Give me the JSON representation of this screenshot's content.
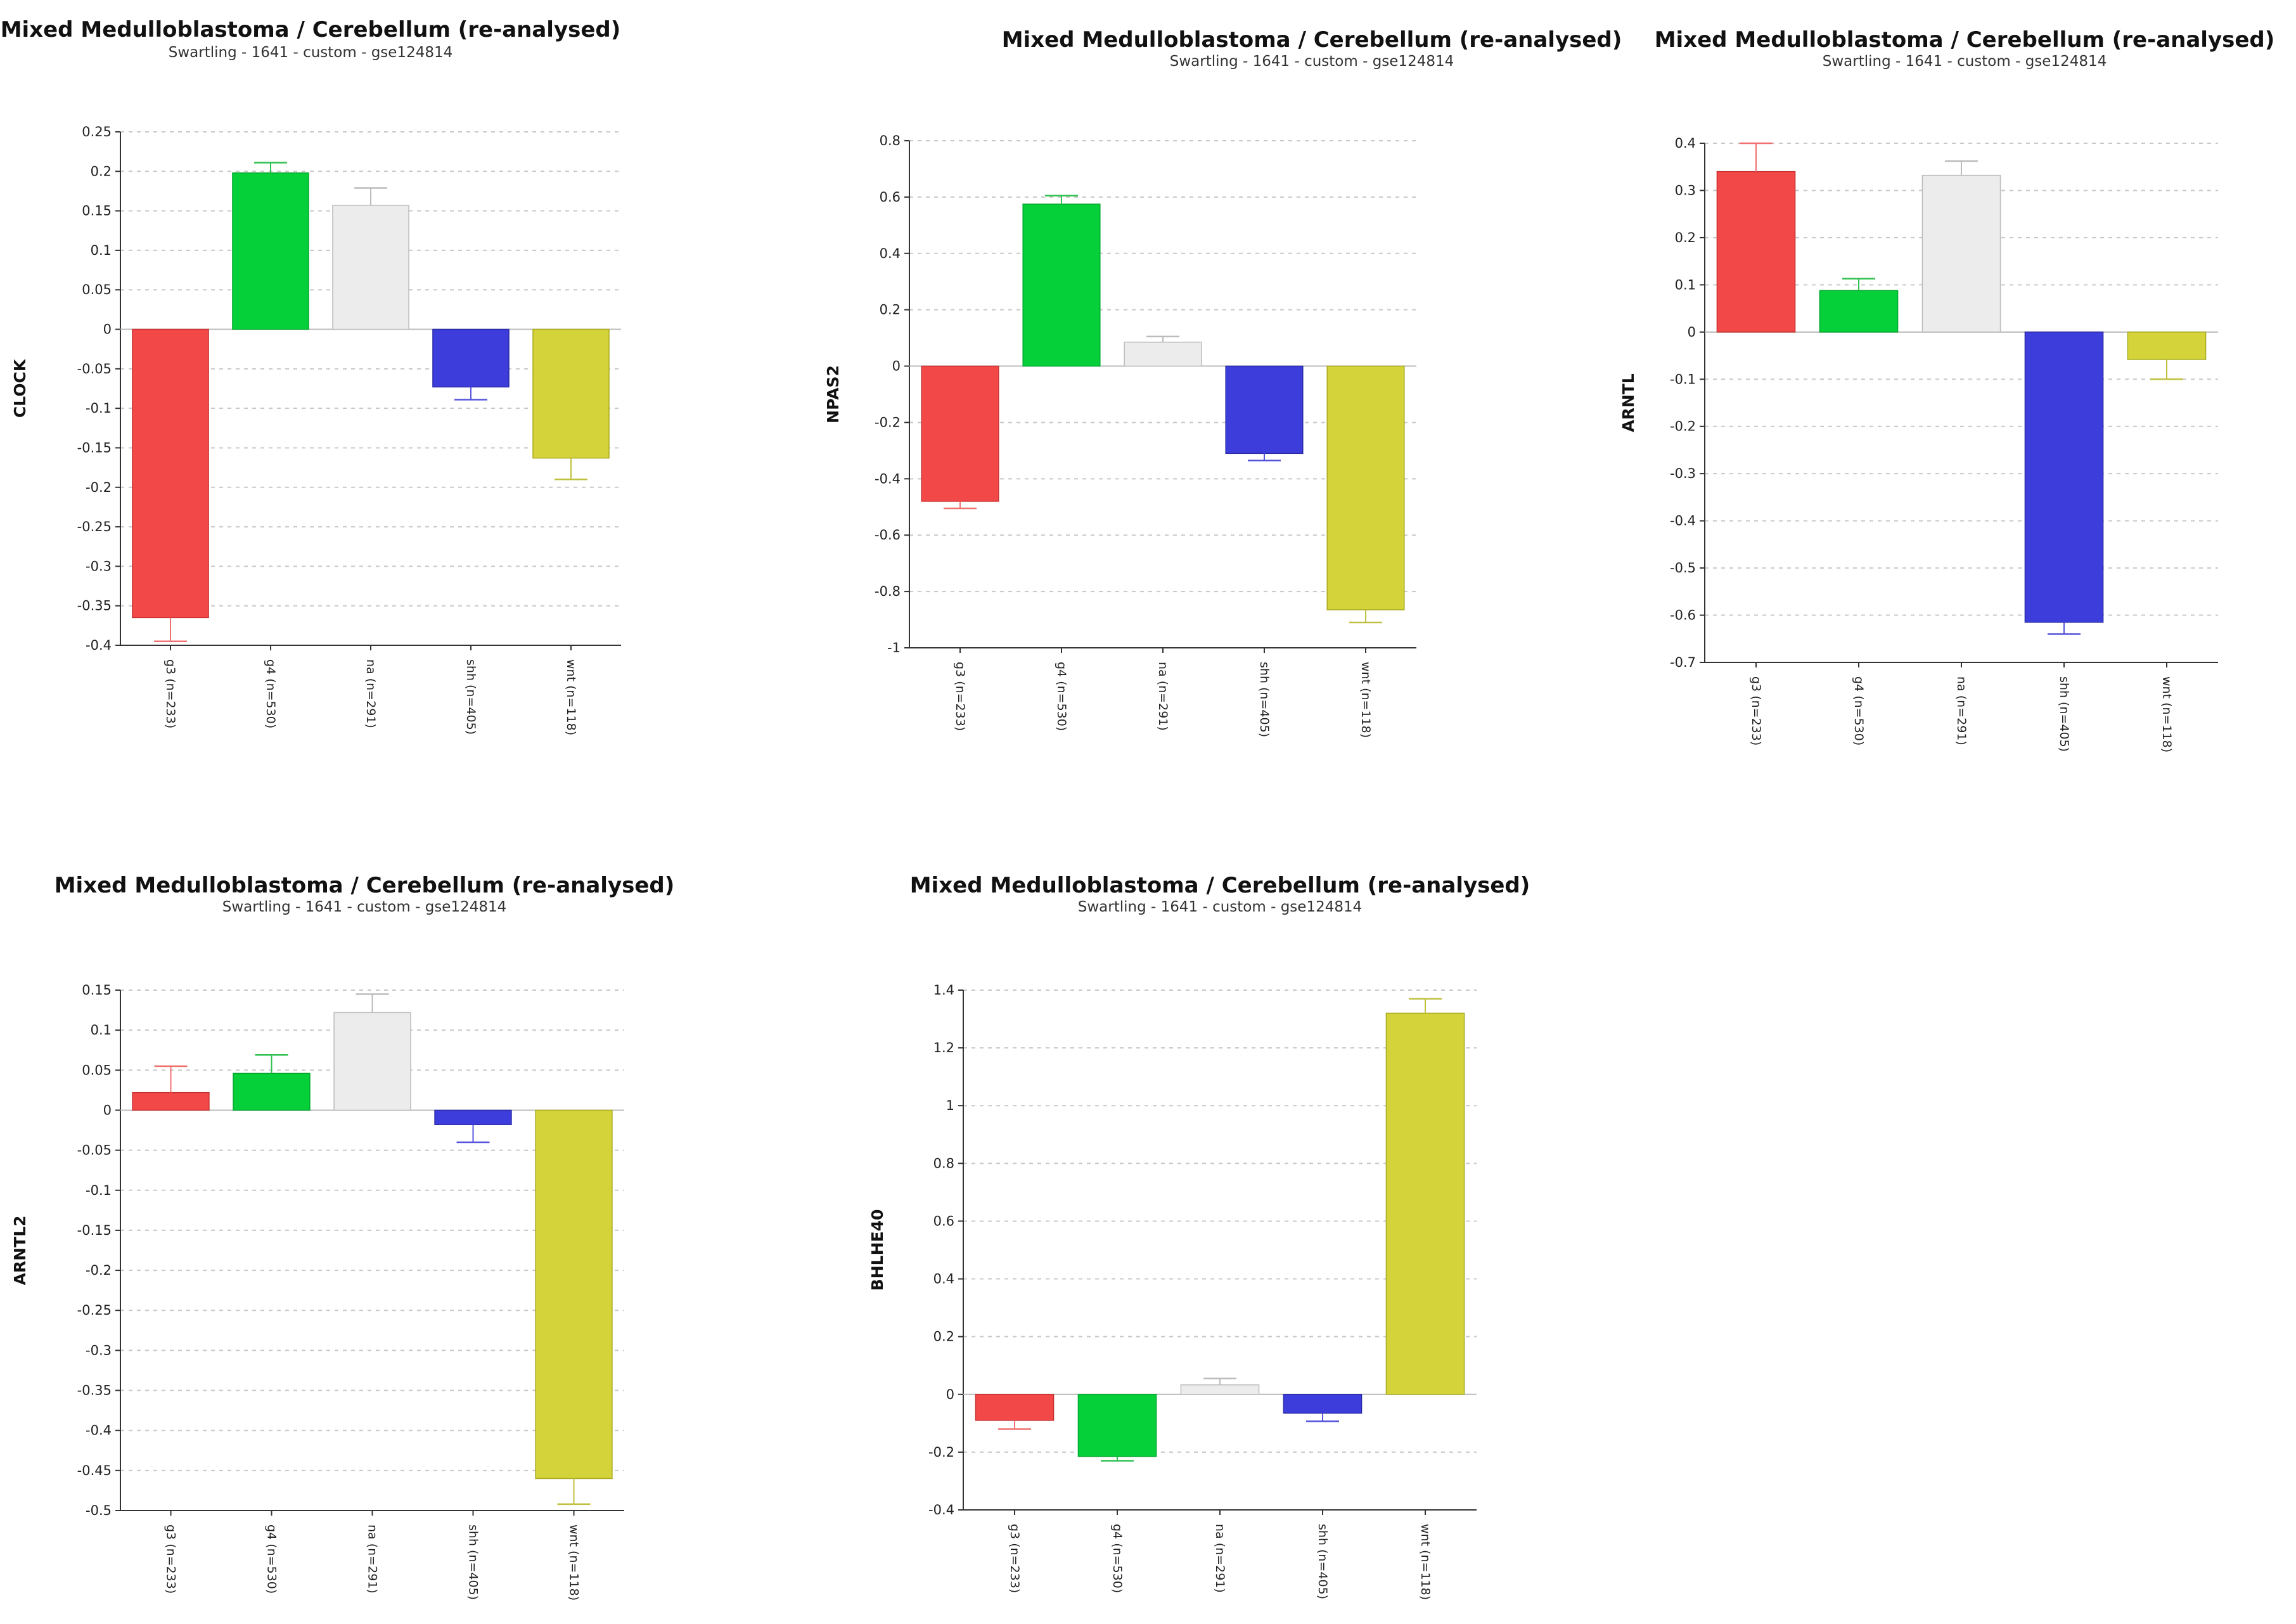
{
  "colors": {
    "g3": "#f24848",
    "g4": "#05d03a",
    "na": "#ececec",
    "shh": "#3d3ddc",
    "wnt": "#d4d43a"
  },
  "chart_data": [
    {
      "type": "bar",
      "title": "Mixed Medulloblastoma / Cerebellum (re-analysed)",
      "subtitle": "Swartling - 1641 - custom - gse124814",
      "ylabel": "CLOCK",
      "xlabel": "",
      "categories": [
        "g3 (n=233)",
        "g4 (n=530)",
        "na (n=291)",
        "shh (n=405)",
        "wnt (n=118)"
      ],
      "values": [
        -0.365,
        0.198,
        0.157,
        -0.073,
        -0.163
      ],
      "errors": [
        0.03,
        0.013,
        0.022,
        0.016,
        0.027
      ],
      "ylim": [
        -0.4,
        0.25
      ],
      "yticks": [
        0.25,
        0.2,
        0.15,
        0.1,
        0.05,
        0,
        -0.05,
        -0.1,
        -0.15,
        -0.2,
        -0.25,
        -0.3,
        -0.35,
        -0.4
      ],
      "ytick_labels": [
        "0.25",
        "0.2",
        "0.15",
        "0.1",
        "0.05",
        "0",
        "-0.05",
        "-0.1",
        "-0.15",
        "-0.2",
        "-0.25",
        "-0.3",
        "-0.35",
        "-0.4"
      ]
    },
    {
      "type": "bar",
      "title": "Mixed Medulloblastoma / Cerebellum (re-analysed)",
      "subtitle": "Swartling - 1641 - custom - gse124814",
      "ylabel": "NPAS2",
      "xlabel": "",
      "categories": [
        "g3 (n=233)",
        "g4 (n=530)",
        "na (n=291)",
        "shh (n=405)",
        "wnt (n=118)"
      ],
      "values": [
        -0.48,
        0.575,
        0.085,
        -0.31,
        -0.865
      ],
      "errors": [
        0.025,
        0.03,
        0.02,
        0.025,
        0.045
      ],
      "ylim": [
        -1,
        0.8
      ],
      "yticks": [
        0.8,
        0.6,
        0.4,
        0.2,
        0,
        -0.2,
        -0.4,
        -0.6,
        -0.8,
        -1
      ],
      "ytick_labels": [
        "0.8",
        "0.6",
        "0.4",
        "0.2",
        "0",
        "-0.2",
        "-0.4",
        "-0.6",
        "-0.8",
        "-1"
      ]
    },
    {
      "type": "bar",
      "title": "Mixed Medulloblastoma / Cerebellum (re-analysed)",
      "subtitle": "Swartling - 1641 - custom - gse124814",
      "ylabel": "ARNTL",
      "xlabel": "",
      "categories": [
        "g3 (n=233)",
        "g4 (n=530)",
        "na (n=291)",
        "shh (n=405)",
        "wnt (n=118)"
      ],
      "values": [
        0.34,
        0.088,
        0.332,
        -0.615,
        -0.058
      ],
      "errors": [
        0.06,
        0.025,
        0.03,
        0.025,
        0.042
      ],
      "ylim": [
        -0.7,
        0.4
      ],
      "yticks": [
        0.4,
        0.3,
        0.2,
        0.1,
        0,
        -0.1,
        -0.2,
        -0.3,
        -0.4,
        -0.5,
        -0.6,
        -0.7
      ],
      "ytick_labels": [
        "0.4",
        "0.3",
        "0.2",
        "0.1",
        "0",
        "-0.1",
        "-0.2",
        "-0.3",
        "-0.4",
        "-0.5",
        "-0.6",
        "-0.7"
      ]
    },
    {
      "type": "bar",
      "title": "Mixed Medulloblastoma / Cerebellum (re-analysed)",
      "subtitle": "Swartling - 1641 - custom - gse124814",
      "ylabel": "ARNTL2",
      "xlabel": "",
      "categories": [
        "g3 (n=233)",
        "g4 (n=530)",
        "na (n=291)",
        "shh (n=405)",
        "wnt (n=118)"
      ],
      "values": [
        0.022,
        0.046,
        0.122,
        -0.018,
        -0.46
      ],
      "errors": [
        0.033,
        0.023,
        0.023,
        0.022,
        0.032
      ],
      "ylim": [
        -0.5,
        0.15
      ],
      "yticks": [
        0.15,
        0.1,
        0.05,
        0,
        -0.05,
        -0.1,
        -0.15,
        -0.2,
        -0.25,
        -0.3,
        -0.35,
        -0.4,
        -0.45,
        -0.5
      ],
      "ytick_labels": [
        "0.15",
        "0.1",
        "0.05",
        "0",
        "-0.05",
        "-0.1",
        "-0.15",
        "-0.2",
        "-0.25",
        "-0.3",
        "-0.35",
        "-0.4",
        "-0.45",
        "-0.5"
      ]
    },
    {
      "type": "bar",
      "title": "Mixed Medulloblastoma / Cerebellum (re-analysed)",
      "subtitle": "Swartling - 1641 - custom - gse124814",
      "ylabel": "BHLHE40",
      "xlabel": "",
      "categories": [
        "g3 (n=233)",
        "g4 (n=530)",
        "na (n=291)",
        "shh (n=405)",
        "wnt (n=118)"
      ],
      "values": [
        -0.09,
        -0.215,
        0.033,
        -0.065,
        1.32
      ],
      "errors": [
        0.03,
        0.015,
        0.022,
        0.028,
        0.05
      ],
      "ylim": [
        -0.4,
        1.4
      ],
      "yticks": [
        1.4,
        1.2,
        1,
        0.8,
        0.6,
        0.4,
        0.2,
        0,
        -0.2,
        -0.4
      ],
      "ytick_labels": [
        "1.4",
        "1.2",
        "1",
        "0.8",
        "0.6",
        "0.4",
        "0.2",
        "0",
        "-0.2",
        "-0.4"
      ]
    }
  ]
}
